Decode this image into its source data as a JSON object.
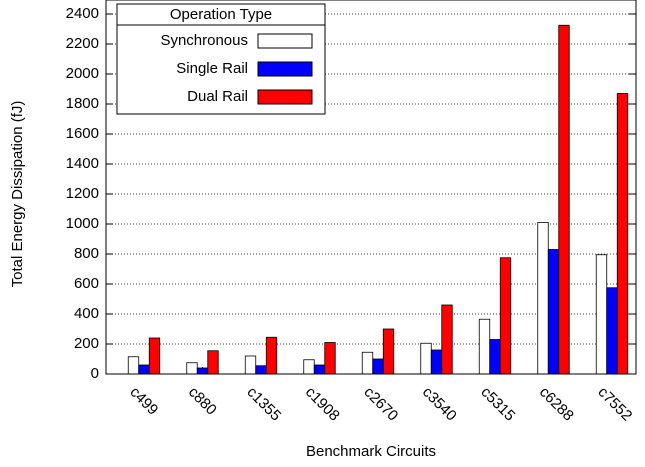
{
  "chart_data": {
    "type": "bar",
    "x_label": "Benchmark Circuits",
    "y_label": "Total Energy Dissipation (fJ)",
    "legend_title": "Operation Type",
    "legend": "upper left",
    "grid": true,
    "categories": [
      "c499",
      "c880",
      "c1355",
      "c1908",
      "c2670",
      "c3540",
      "c5315",
      "c6288",
      "c7552"
    ],
    "series": [
      {
        "name": "Synchronous",
        "color": "#ffffff",
        "values": [
          115,
          75,
          120,
          95,
          145,
          205,
          365,
          1010,
          795
        ]
      },
      {
        "name": "Single Rail",
        "color": "#0000ff",
        "values": [
          60,
          40,
          55,
          60,
          100,
          160,
          230,
          830,
          575
        ]
      },
      {
        "name": "Dual Rail",
        "color": "#ff0000",
        "values": [
          240,
          155,
          245,
          210,
          300,
          460,
          775,
          2325,
          1870
        ]
      }
    ],
    "ylim": [
      0,
      2400
    ],
    "yticks": [
      0,
      200,
      400,
      600,
      800,
      1000,
      1200,
      1400,
      1600,
      1800,
      2000,
      2200,
      2400
    ]
  }
}
